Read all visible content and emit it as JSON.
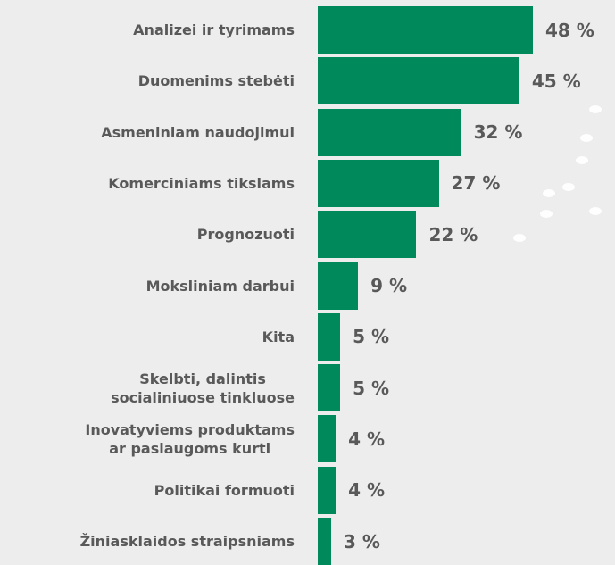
{
  "chart_data": {
    "type": "bar",
    "orientation": "horizontal",
    "color": "#008a5c",
    "categories": [
      "Analizei ir tyrimams",
      "Duomenims stebėti",
      "Asmeniniam naudojimui",
      "Komerciniams tikslams",
      "Prognozuoti",
      "Moksliniam darbui",
      "Kita",
      "Skelbti, dalintis\nsocialiniuose tinkluose",
      "Inovatyviems produktams\nar paslaugoms kurti",
      "Politikai formuoti",
      "Žiniasklaidos straipsniams"
    ],
    "values": [
      48,
      45,
      32,
      27,
      22,
      9,
      5,
      5,
      4,
      4,
      3
    ],
    "value_labels": [
      "48 %",
      "45 %",
      "32 %",
      "27 %",
      "22 %",
      "9 %",
      "5 %",
      "5 %",
      "4 %",
      "4 %",
      "3 %"
    ]
  }
}
